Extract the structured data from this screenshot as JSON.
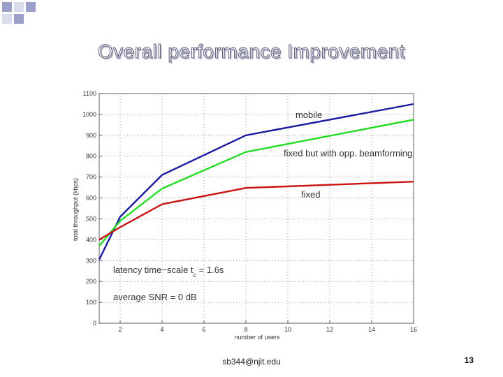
{
  "slide": {
    "title": "Overall performance Improvement",
    "footer": "sb344@njit.edu",
    "page_number": "13"
  },
  "colors": {
    "mobile": "#1a1aa0",
    "beamforming": "#22dd22",
    "fixed": "#cc1111",
    "deco_dark": "#9aa0c8",
    "deco_light": "#d9dcec"
  },
  "chart_data": {
    "type": "line",
    "title": "",
    "xlabel": "number of users",
    "ylabel": "total throughput (kbps)",
    "xlim": [
      1,
      16
    ],
    "ylim": [
      0,
      1100
    ],
    "x_ticks": [
      2,
      4,
      6,
      8,
      10,
      12,
      14,
      16
    ],
    "x_tick_labels": [
      "2",
      "4",
      "6",
      "8",
      "10",
      "12",
      "14",
      "16"
    ],
    "y_ticks": [
      0,
      100,
      200,
      300,
      400,
      500,
      600,
      700,
      800,
      900,
      1000,
      1100
    ],
    "y_tick_labels": [
      "0",
      "100",
      "200",
      "300",
      "400",
      "500",
      "600",
      "700",
      "800",
      "900",
      "1000",
      "1100"
    ],
    "grid": true,
    "series": [
      {
        "name": "mobile",
        "color_key": "mobile",
        "x": [
          1,
          2,
          4,
          8,
          16
        ],
        "y": [
          305,
          510,
          710,
          900,
          1050
        ]
      },
      {
        "name": "fixed but with opp. beamforming",
        "color_key": "beamforming",
        "x": [
          1,
          2,
          4,
          8,
          16
        ],
        "y": [
          370,
          490,
          645,
          820,
          975
        ]
      },
      {
        "name": "fixed",
        "color_key": "fixed",
        "x": [
          1,
          2,
          4,
          8,
          16
        ],
        "y": [
          400,
          460,
          570,
          648,
          678
        ]
      }
    ],
    "annotations": {
      "latency_main": "latency time−scale t",
      "latency_sub": "c",
      "latency_value": " = 1.6s",
      "snr": "average SNR = 0 dB"
    }
  }
}
